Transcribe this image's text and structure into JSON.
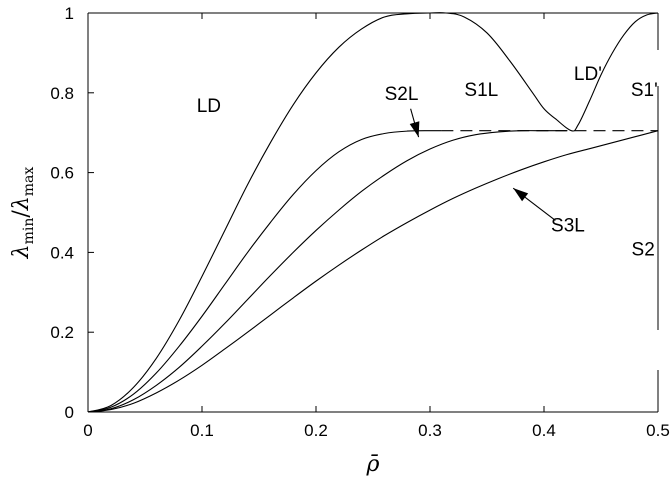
{
  "chart_data": {
    "type": "line",
    "xlabel": "ρ̄",
    "ylabel": "λ_min/λ_max",
    "xlim": [
      0,
      0.5
    ],
    "ylim": [
      0,
      1
    ],
    "xticks": [
      "0",
      "0.1",
      "0.2",
      "0.3",
      "0.4",
      "0.5"
    ],
    "yticks": [
      "0",
      "0.2",
      "0.4",
      "0.6",
      "0.8",
      "1"
    ],
    "grid": false,
    "legend": "none",
    "series": [
      {
        "style": "solid",
        "x": [
          0,
          0.02,
          0.04,
          0.06,
          0.08,
          0.1,
          0.12,
          0.14,
          0.16,
          0.18,
          0.2,
          0.22,
          0.24,
          0.26,
          0.28,
          0.3,
          0.314,
          0.33,
          0.35,
          0.37,
          0.39,
          0.4,
          0.41,
          0.424,
          0.43,
          0.44,
          0.45,
          0.46,
          0.47,
          0.48,
          0.49,
          0.5
        ],
        "y": [
          0,
          0.016,
          0.062,
          0.135,
          0.23,
          0.34,
          0.455,
          0.57,
          0.675,
          0.77,
          0.85,
          0.914,
          0.96,
          0.99,
          0.998,
          1.0,
          1.0,
          0.99,
          0.95,
          0.88,
          0.8,
          0.76,
          0.735,
          0.705,
          0.72,
          0.78,
          0.845,
          0.9,
          0.945,
          0.978,
          0.995,
          1.0
        ]
      },
      {
        "style": "solid",
        "x": [
          0,
          0.02,
          0.04,
          0.06,
          0.08,
          0.1,
          0.12,
          0.14,
          0.16,
          0.18,
          0.2,
          0.22,
          0.24,
          0.26,
          0.28,
          0.3,
          0.31
        ],
        "y": [
          0,
          0.012,
          0.045,
          0.098,
          0.165,
          0.24,
          0.32,
          0.4,
          0.475,
          0.545,
          0.605,
          0.652,
          0.683,
          0.698,
          0.704,
          0.705,
          0.705
        ]
      },
      {
        "style": "dashed",
        "x": [
          0.31,
          0.5
        ],
        "y": [
          0.705,
          0.705
        ]
      },
      {
        "style": "solid",
        "x": [
          0,
          0.02,
          0.04,
          0.06,
          0.08,
          0.1,
          0.12,
          0.14,
          0.16,
          0.18,
          0.2,
          0.22,
          0.24,
          0.26,
          0.28,
          0.3,
          0.32,
          0.34,
          0.36,
          0.38,
          0.4,
          0.42
        ],
        "y": [
          0,
          0.008,
          0.031,
          0.067,
          0.112,
          0.165,
          0.222,
          0.282,
          0.342,
          0.4,
          0.455,
          0.506,
          0.553,
          0.594,
          0.63,
          0.659,
          0.681,
          0.695,
          0.702,
          0.705,
          0.705,
          0.705
        ]
      },
      {
        "style": "solid",
        "x": [
          0,
          0.02,
          0.04,
          0.06,
          0.08,
          0.1,
          0.12,
          0.14,
          0.16,
          0.18,
          0.2,
          0.22,
          0.24,
          0.26,
          0.28,
          0.3,
          0.32,
          0.34,
          0.36,
          0.38,
          0.4,
          0.42,
          0.44,
          0.46,
          0.48,
          0.5
        ],
        "y": [
          0,
          0.006,
          0.022,
          0.048,
          0.08,
          0.117,
          0.158,
          0.2,
          0.243,
          0.286,
          0.328,
          0.368,
          0.406,
          0.442,
          0.475,
          0.506,
          0.535,
          0.561,
          0.585,
          0.607,
          0.627,
          0.645,
          0.66,
          0.675,
          0.69,
          0.705
        ]
      }
    ],
    "annotations": [
      {
        "text": "LD",
        "x": 0.106,
        "y": 0.77
      },
      {
        "text": "S1L",
        "x": 0.345,
        "y": 0.81
      },
      {
        "text": "LD'",
        "x": 0.4385,
        "y": 0.85
      },
      {
        "text": "S1'",
        "x": 0.488,
        "y": 0.81
      },
      {
        "text": "S2L",
        "x": 0.275,
        "y": 0.8
      },
      {
        "text": "S3L",
        "x": 0.421,
        "y": 0.47
      },
      {
        "text": "S2",
        "x": 0.487,
        "y": 0.41
      }
    ],
    "arrows": [
      {
        "from": [
          0.283,
          0.76
        ],
        "to": [
          0.29,
          0.689
        ]
      },
      {
        "from": [
          0.41,
          0.48
        ],
        "to": [
          0.373,
          0.561
        ]
      }
    ]
  }
}
